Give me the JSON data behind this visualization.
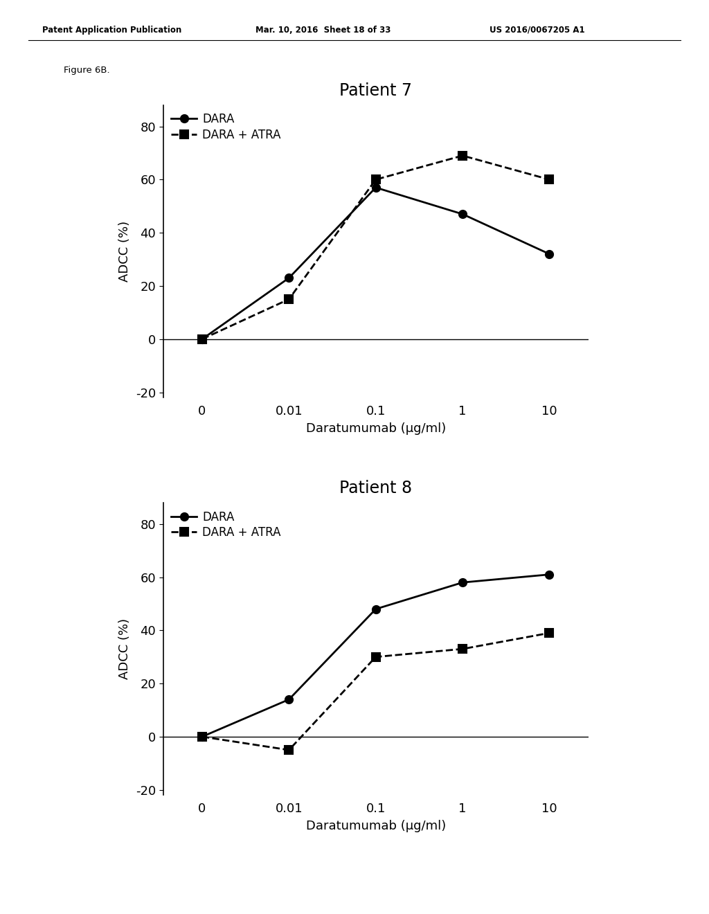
{
  "header_left": "Patent Application Publication",
  "header_mid": "Mar. 10, 2016  Sheet 18 of 33",
  "header_right": "US 2016/0067205 A1",
  "figure_label": "Figure 6B.",
  "background_color": "#ffffff",
  "plots": [
    {
      "title": "Patient 7",
      "x_tick_labels": [
        "0",
        "0.01",
        "0.1",
        "1",
        "10"
      ],
      "xlabel": "Daratumumab (μg/ml)",
      "ylabel": "ADCC (%)",
      "ylim": [
        -22,
        88
      ],
      "yticks": [
        -20,
        0,
        20,
        40,
        60,
        80
      ],
      "series": [
        {
          "label": "DARA",
          "y": [
            0,
            23,
            57,
            47,
            32
          ],
          "linestyle": "solid",
          "marker": "o"
        },
        {
          "label": "DARA + ATRA",
          "y": [
            0,
            15,
            60,
            69,
            60
          ],
          "linestyle": "dashed",
          "marker": "s"
        }
      ]
    },
    {
      "title": "Patient 8",
      "x_tick_labels": [
        "0",
        "0.01",
        "0.1",
        "1",
        "10"
      ],
      "xlabel": "Daratumumab (μg/ml)",
      "ylabel": "ADCC (%)",
      "ylim": [
        -22,
        88
      ],
      "yticks": [
        -20,
        0,
        20,
        40,
        60,
        80
      ],
      "series": [
        {
          "label": "DARA",
          "y": [
            0,
            14,
            48,
            58,
            61
          ],
          "linestyle": "solid",
          "marker": "o"
        },
        {
          "label": "DARA + ATRA",
          "y": [
            0,
            -5,
            30,
            33,
            39
          ],
          "linestyle": "dashed",
          "marker": "s"
        }
      ]
    }
  ],
  "header_fontsize": 8.5,
  "axis_fontsize": 13,
  "label_fontsize": 13,
  "title_fontsize": 17,
  "legend_fontsize": 12,
  "line_width": 2.0,
  "marker_size": 8,
  "color": "#000000"
}
